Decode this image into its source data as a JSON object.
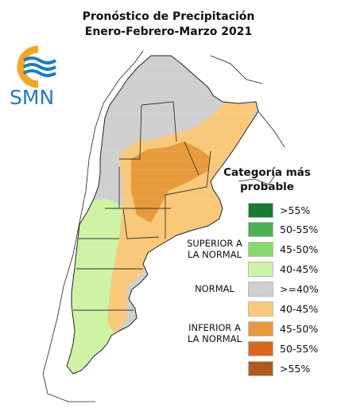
{
  "map": {
    "title_line1": "Pronóstico de Precipitación",
    "title_line2": "Enero-Febrero-Marzo 2021"
  },
  "logo": {
    "text": "SMN",
    "colors": {
      "orange": "#f5a623",
      "blue": "#1a7cc1"
    }
  },
  "legend": {
    "title_line1": "Categoría más",
    "title_line2": "probable",
    "groups": [
      {
        "label_line1": "SUPERIOR A",
        "label_line2": "LA NORMAL"
      },
      {
        "label_line1": "NORMAL",
        "label_line2": ""
      },
      {
        "label_line1": "INFERIOR A",
        "label_line2": "LA NORMAL"
      }
    ],
    "items": [
      {
        "label": ">55%",
        "color": "#1a7a2e"
      },
      {
        "label": "50-55%",
        "color": "#4caf50"
      },
      {
        "label": "45-50%",
        "color": "#86d86b"
      },
      {
        "label": "40-45%",
        "color": "#cdf3a5"
      },
      {
        "label": ">=40%",
        "color": "#cfcfcf"
      },
      {
        "label": "40-45%",
        "color": "#f9c878"
      },
      {
        "label": "45-50%",
        "color": "#e79a3a"
      },
      {
        "label": "50-55%",
        "color": "#d9661c"
      },
      {
        "label": ">55%",
        "color": "#b05a1e"
      }
    ]
  }
}
